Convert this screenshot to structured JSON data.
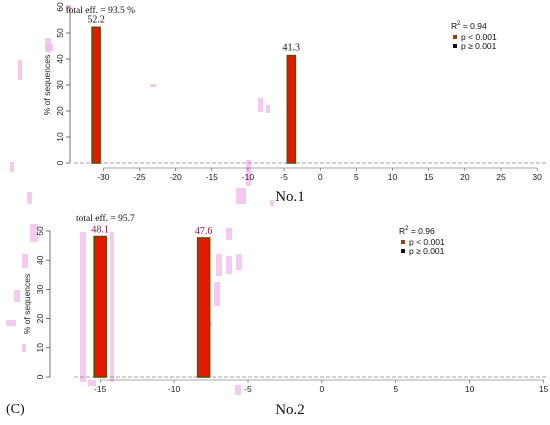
{
  "figure": {
    "panel_letter": "(C)"
  },
  "colors": {
    "bar_fill": "#e41a00",
    "bar_edge": "#6b4a00",
    "legend_sig": "#8b4513",
    "legend_nonsig": "#111111",
    "axis": "#555555",
    "artifact": "#f2b8ec"
  },
  "chart_data": [
    {
      "type": "bar",
      "title": "No.1",
      "annotation": "total eff. = 93.5 %",
      "ylabel": "% of sequences",
      "xlabel": "",
      "xlim": [
        -33.5,
        31.5
      ],
      "ylim": [
        0,
        60
      ],
      "xticks": [
        -30,
        -25,
        -20,
        -15,
        -10,
        -5,
        0,
        5,
        10,
        15,
        20,
        25,
        30
      ],
      "yticks": [
        0,
        10,
        20,
        30,
        40,
        50,
        60
      ],
      "bars": [
        {
          "x": -31,
          "value": 52.2,
          "label": "52.2"
        },
        {
          "x": -4,
          "value": 41.3,
          "label": "41.3"
        }
      ],
      "r2": "R",
      "r2_sup": "2",
      "r2_val": " = 0.94",
      "legend": [
        {
          "label": "p < 0.001",
          "color": "#8b4513"
        },
        {
          "label": "p ≥ 0.001",
          "color": "#111111"
        }
      ],
      "legend_position": "top-right"
    },
    {
      "type": "bar",
      "title": "No.2",
      "annotation": "total eff. = 95.7",
      "ylabel": "% of sequences",
      "xlabel": "",
      "xlim": [
        -16.5,
        15.3
      ],
      "ylim": [
        0,
        50
      ],
      "xticks": [
        -15,
        -10,
        -5,
        0,
        5,
        10,
        15
      ],
      "yticks": [
        0,
        10,
        20,
        30,
        40,
        50
      ],
      "bars": [
        {
          "x": -15,
          "value": 48.1,
          "label": "48.1"
        },
        {
          "x": -8,
          "value": 47.6,
          "label": "47.6"
        }
      ],
      "r2": "R",
      "r2_sup": "2",
      "r2_val": " = 0.96",
      "legend": [
        {
          "label": "p < 0.001",
          "color": "#8b4513"
        },
        {
          "label": "p ≥ 0.001",
          "color": "#111111"
        }
      ],
      "legend_position": "top-right"
    }
  ]
}
